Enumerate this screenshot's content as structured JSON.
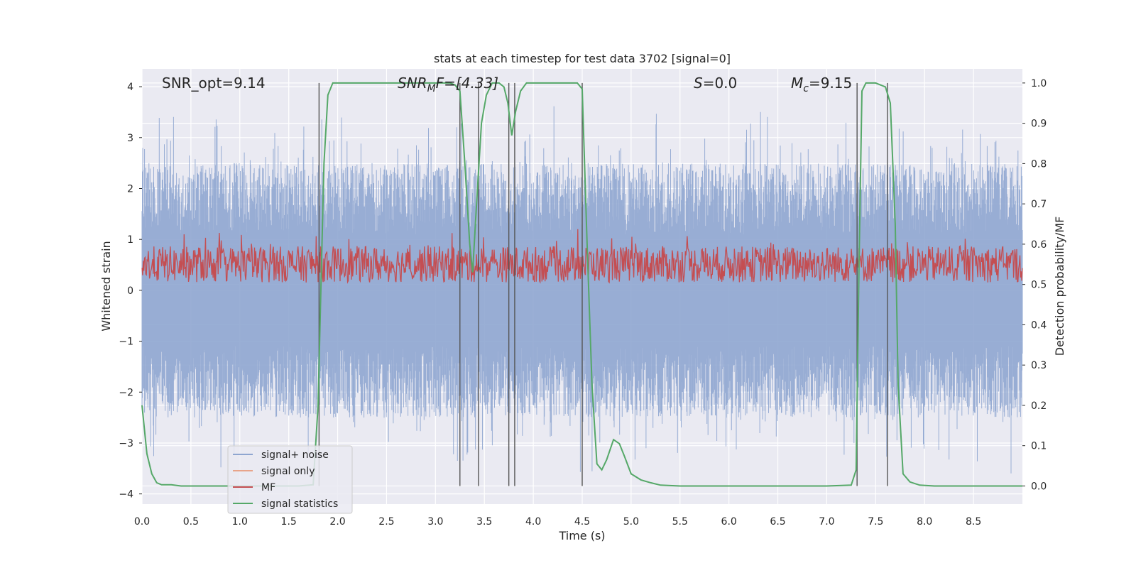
{
  "chart_data": {
    "type": "line",
    "title": "stats at each timestep for test data 3702 [signal=0]",
    "xlabel": "Time (s)",
    "ylabel": "Whitened strain",
    "y2label": "Detection probability/MF",
    "xlim": [
      0.0,
      9.0
    ],
    "ylim": [
      -4.2,
      4.35
    ],
    "y2lim": [
      -0.045,
      1.035
    ],
    "xticks": [
      "0.0",
      "0.5",
      "1.0",
      "1.5",
      "2.0",
      "2.5",
      "3.0",
      "3.5",
      "4.0",
      "4.5",
      "5.0",
      "5.5",
      "6.0",
      "6.5",
      "7.0",
      "7.5",
      "8.0",
      "8.5"
    ],
    "xtick_values": [
      0.0,
      0.5,
      1.0,
      1.5,
      2.0,
      2.5,
      3.0,
      3.5,
      4.0,
      4.5,
      5.0,
      5.5,
      6.0,
      6.5,
      7.0,
      7.5,
      8.0,
      8.5
    ],
    "yticks": [
      "4",
      "3",
      "2",
      "1",
      "0",
      "−1",
      "−2",
      "−3",
      "−4"
    ],
    "ytick_values": [
      4,
      3,
      2,
      1,
      0,
      -1,
      -2,
      -3,
      -4
    ],
    "y2ticks": [
      "1.0",
      "0.9",
      "0.8",
      "0.7",
      "0.6",
      "0.5",
      "0.4",
      "0.3",
      "0.2",
      "0.1",
      "0.0"
    ],
    "y2tick_values": [
      1.0,
      0.9,
      0.8,
      0.7,
      0.6,
      0.5,
      0.4,
      0.3,
      0.2,
      0.1,
      0.0
    ],
    "grid": true,
    "legend_position": "bottom-left",
    "annotations": {
      "snr_opt": "SNR_opt=9.14",
      "snr_mf_prefix": "SNR",
      "snr_mf_sub": "M",
      "snr_mf_suffix": "F=[4.33]",
      "s_prefix": "S",
      "s_suffix": "=0.0",
      "mc_prefix": "M",
      "mc_sub": "c",
      "mc_suffix": "=9.15"
    },
    "series": [
      {
        "name": "signal+ noise",
        "color": "#8fa6d0",
        "axis": "left",
        "description": "dense noisy strain, range about -3.6 to 4.0"
      },
      {
        "name": "signal only",
        "color": "#e8a48a",
        "axis": "left",
        "values": []
      },
      {
        "name": "MF",
        "color": "#c44e52",
        "axis": "right",
        "description": "matched filter output, range about 0.5 to 0.65 on right axis"
      },
      {
        "name": "signal statistics",
        "color": "#55a868",
        "axis": "right",
        "x": [
          0.0,
          0.05,
          0.1,
          0.15,
          0.2,
          0.3,
          0.4,
          0.5,
          0.7,
          1.0,
          1.3,
          1.6,
          1.75,
          1.8,
          1.83,
          1.86,
          1.9,
          1.95,
          2.0,
          2.5,
          3.0,
          3.15,
          3.2,
          3.25,
          3.3,
          3.35,
          3.38,
          3.42,
          3.47,
          3.52,
          3.58,
          3.65,
          3.7,
          3.74,
          3.78,
          3.82,
          3.87,
          3.93,
          4.0,
          4.3,
          4.45,
          4.5,
          4.55,
          4.6,
          4.65,
          4.7,
          4.75,
          4.82,
          4.88,
          4.93,
          5.0,
          5.1,
          5.2,
          5.3,
          5.5,
          6.0,
          6.5,
          7.0,
          7.25,
          7.3,
          7.33,
          7.36,
          7.4,
          7.5,
          7.6,
          7.65,
          7.7,
          7.73,
          7.78,
          7.85,
          7.95,
          8.1,
          8.5,
          9.0
        ],
        "values": [
          0.2,
          0.08,
          0.03,
          0.008,
          0.003,
          0.003,
          0.0,
          0.0,
          0.0,
          0.0,
          0.0,
          0.0,
          0.003,
          0.2,
          0.5,
          0.8,
          0.97,
          1.0,
          1.0,
          1.0,
          1.0,
          1.0,
          0.995,
          0.98,
          0.8,
          0.6,
          0.53,
          0.7,
          0.9,
          0.97,
          1.0,
          1.0,
          0.99,
          0.95,
          0.87,
          0.93,
          0.98,
          1.0,
          1.0,
          1.0,
          1.0,
          0.985,
          0.6,
          0.25,
          0.055,
          0.04,
          0.065,
          0.115,
          0.105,
          0.075,
          0.03,
          0.015,
          0.008,
          0.002,
          0.0,
          0.0,
          0.0,
          0.0,
          0.002,
          0.04,
          0.55,
          0.98,
          1.0,
          1.0,
          0.99,
          0.95,
          0.65,
          0.25,
          0.03,
          0.01,
          0.002,
          0.0,
          0.0,
          0.0
        ]
      }
    ],
    "vertical_lines_x": [
      1.81,
      3.25,
      3.44,
      3.75,
      3.81,
      4.5,
      7.31,
      7.62
    ],
    "legend": [
      "signal+ noise",
      "signal only",
      "MF",
      "signal statistics"
    ]
  }
}
